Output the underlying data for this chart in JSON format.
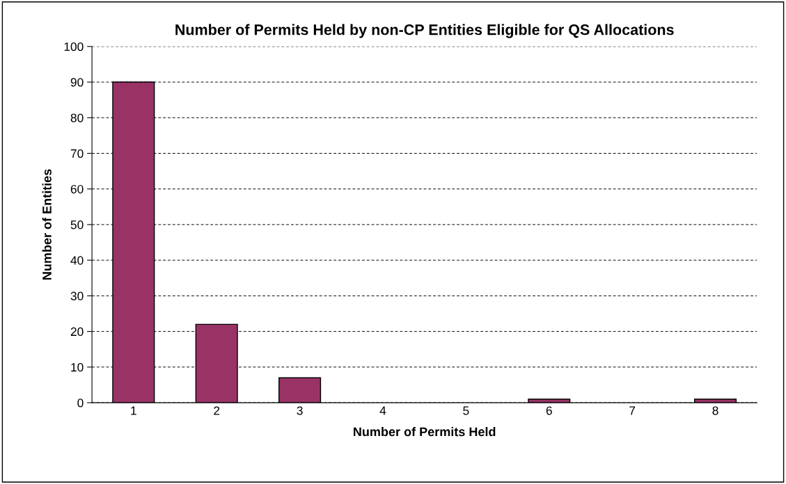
{
  "chart_data": {
    "type": "bar",
    "title": "Number of Permits Held by non-CP Entities Eligible for QS Allocations",
    "xlabel": "Number of Permits Held",
    "ylabel": "Number of Entities",
    "categories": [
      "1",
      "2",
      "3",
      "4",
      "5",
      "6",
      "7",
      "8"
    ],
    "values": [
      90,
      22,
      7,
      0,
      0,
      1,
      0,
      1
    ],
    "color": "#993366",
    "ylim": [
      0,
      100
    ],
    "yticks": [
      0,
      10,
      20,
      30,
      40,
      50,
      60,
      70,
      80,
      90,
      100
    ],
    "grid": "y",
    "legend": false
  }
}
